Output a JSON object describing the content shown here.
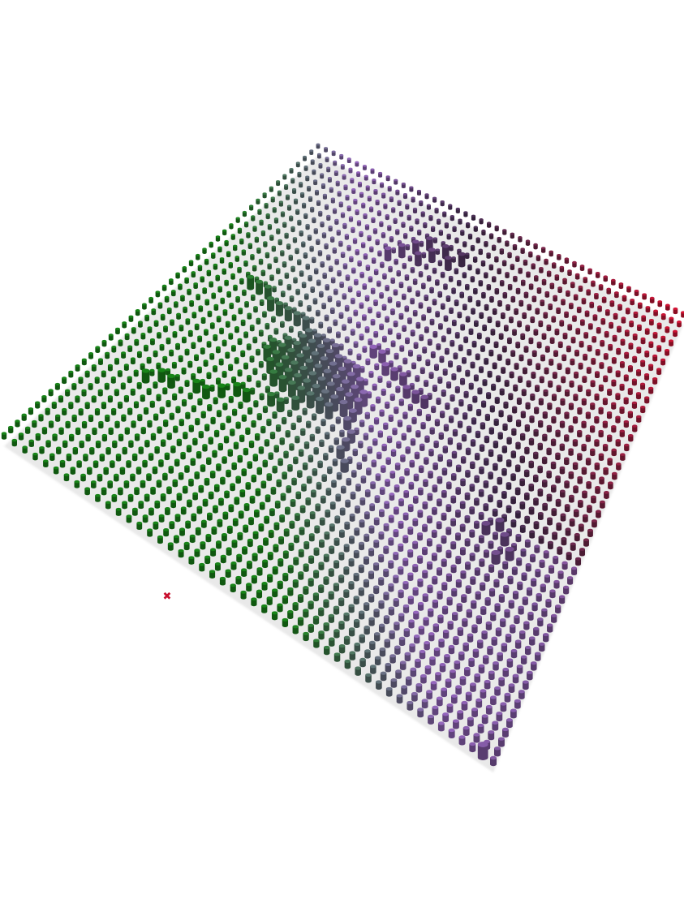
{
  "scene": {
    "description_label": "",
    "grid": {
      "rows": 48,
      "cols": 48
    },
    "colors": {
      "top": "#c8102e",
      "middle": "#8a5fb0",
      "bottom": "#167a16",
      "background": "#ffffff"
    },
    "marker": {
      "icon": "x-marker-icon",
      "glyph": "✖",
      "color": "#c8102e"
    }
  }
}
